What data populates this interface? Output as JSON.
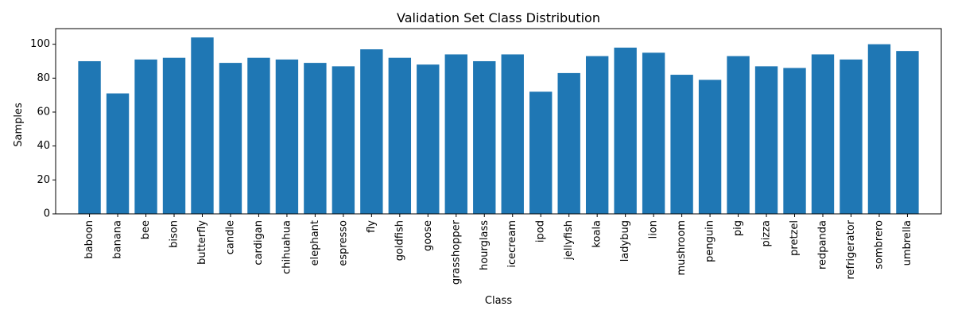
{
  "chart_data": {
    "type": "bar",
    "title": "Validation Set Class Distribution",
    "xlabel": "Class",
    "ylabel": "Samples",
    "categories": [
      "baboon",
      "banana",
      "bee",
      "bison",
      "butterfly",
      "candle",
      "cardigan",
      "chihuahua",
      "elephant",
      "espresso",
      "fly",
      "goldfish",
      "goose",
      "grasshopper",
      "hourglass",
      "icecream",
      "ipod",
      "jellyfish",
      "koala",
      "ladybug",
      "lion",
      "mushroom",
      "penguin",
      "pig",
      "pizza",
      "pretzel",
      "redpanda",
      "refrigerator",
      "sombrero",
      "umbrella"
    ],
    "values": [
      90,
      71,
      91,
      92,
      104,
      89,
      92,
      91,
      89,
      87,
      97,
      92,
      88,
      94,
      90,
      94,
      72,
      83,
      93,
      98,
      95,
      82,
      79,
      93,
      87,
      86,
      94,
      91,
      100,
      96
    ],
    "ylim": [
      0,
      109.2
    ],
    "yticks": [
      0,
      20,
      40,
      60,
      80,
      100
    ],
    "bar_color": "#1f77b4",
    "grid": false,
    "legend": "none"
  }
}
